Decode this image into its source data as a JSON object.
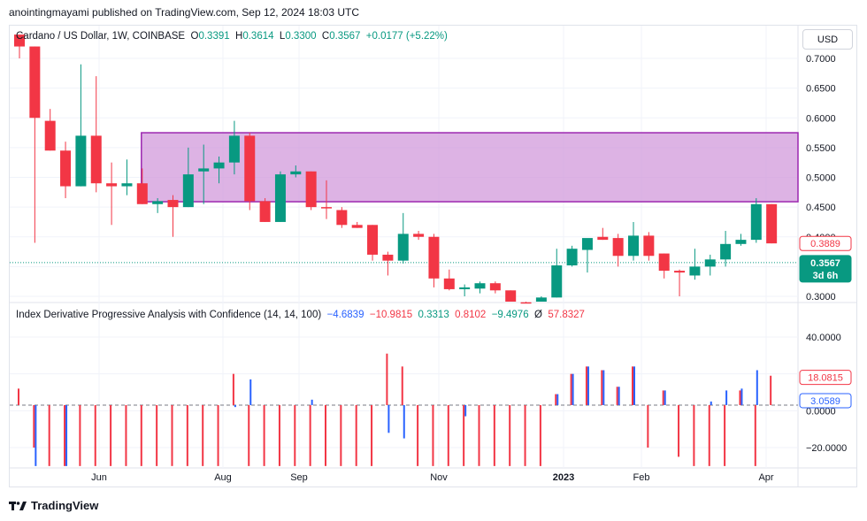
{
  "header": {
    "published_text": "anointingmayami published on TradingView.com, Sep 12, 2024 18:03 UTC"
  },
  "currency_button": "USD",
  "legend": {
    "symbol": "Cardano / US Dollar, 1W, COINBASE",
    "open_label": "O",
    "open": "0.3391",
    "high_label": "H",
    "high": "0.3614",
    "low_label": "L",
    "low": "0.3300",
    "close_label": "C",
    "close": "0.3567",
    "change": "+0.0177 (+5.22%)"
  },
  "indicator_legend": {
    "name": "Index Derivative Progressive Analysis with Confidence (14, 14, 100)",
    "v1": "−4.6839",
    "v2": "−10.9815",
    "v3": "0.3313",
    "v4": "0.8102",
    "v5": "−9.4976",
    "sym": "Ø",
    "v6": "57.8327"
  },
  "price_tags": {
    "upper": "0.3889",
    "current": "0.3567",
    "countdown": "3d 6h"
  },
  "indicator_tags": {
    "upper": "18.0815",
    "lower": "3.0589"
  },
  "footer": {
    "brand": "TradingView"
  },
  "colors": {
    "up": "#089981",
    "down": "#f23645",
    "box_fill": "#ce93d8",
    "box_border": "#9c27b0",
    "blue": "#2962ff"
  },
  "chart_data": [
    {
      "type": "candlestick",
      "title": "Cardano / US Dollar, 1W, COINBASE",
      "y_ticks": [
        "0.7000",
        "0.6500",
        "0.6000",
        "0.5500",
        "0.5000",
        "0.4500",
        "0.4000",
        "0.3500",
        "0.3000"
      ],
      "x_ticks": [
        "Jun",
        "Aug",
        "Sep",
        "Nov",
        "2023",
        "Feb",
        "Apr"
      ],
      "ylim": [
        0.29,
        0.74
      ],
      "candles": [
        {
          "o": 0.74,
          "h": 0.74,
          "l": 0.7,
          "c": 0.72
        },
        {
          "o": 0.72,
          "h": 0.72,
          "l": 0.39,
          "c": 0.6
        },
        {
          "o": 0.595,
          "h": 0.615,
          "l": 0.545,
          "c": 0.545
        },
        {
          "o": 0.545,
          "h": 0.56,
          "l": 0.465,
          "c": 0.485
        },
        {
          "o": 0.485,
          "h": 0.69,
          "l": 0.485,
          "c": 0.57
        },
        {
          "o": 0.57,
          "h": 0.67,
          "l": 0.475,
          "c": 0.49
        },
        {
          "o": 0.49,
          "h": 0.525,
          "l": 0.42,
          "c": 0.485
        },
        {
          "o": 0.485,
          "h": 0.53,
          "l": 0.47,
          "c": 0.49
        },
        {
          "o": 0.49,
          "h": 0.515,
          "l": 0.455,
          "c": 0.455
        },
        {
          "o": 0.455,
          "h": 0.465,
          "l": 0.44,
          "c": 0.46
        },
        {
          "o": 0.462,
          "h": 0.47,
          "l": 0.4,
          "c": 0.45
        },
        {
          "o": 0.45,
          "h": 0.55,
          "l": 0.45,
          "c": 0.505
        },
        {
          "o": 0.51,
          "h": 0.555,
          "l": 0.455,
          "c": 0.515
        },
        {
          "o": 0.515,
          "h": 0.535,
          "l": 0.49,
          "c": 0.525
        },
        {
          "o": 0.525,
          "h": 0.595,
          "l": 0.505,
          "c": 0.57
        },
        {
          "o": 0.57,
          "h": 0.575,
          "l": 0.445,
          "c": 0.46
        },
        {
          "o": 0.46,
          "h": 0.465,
          "l": 0.425,
          "c": 0.425
        },
        {
          "o": 0.425,
          "h": 0.51,
          "l": 0.425,
          "c": 0.505
        },
        {
          "o": 0.505,
          "h": 0.52,
          "l": 0.5,
          "c": 0.51
        },
        {
          "o": 0.51,
          "h": 0.51,
          "l": 0.445,
          "c": 0.45
        },
        {
          "o": 0.45,
          "h": 0.495,
          "l": 0.43,
          "c": 0.448
        },
        {
          "o": 0.445,
          "h": 0.45,
          "l": 0.415,
          "c": 0.42
        },
        {
          "o": 0.42,
          "h": 0.425,
          "l": 0.415,
          "c": 0.415
        },
        {
          "o": 0.42,
          "h": 0.42,
          "l": 0.36,
          "c": 0.37
        },
        {
          "o": 0.37,
          "h": 0.375,
          "l": 0.335,
          "c": 0.36
        },
        {
          "o": 0.36,
          "h": 0.44,
          "l": 0.355,
          "c": 0.405
        },
        {
          "o": 0.405,
          "h": 0.41,
          "l": 0.395,
          "c": 0.4
        },
        {
          "o": 0.4,
          "h": 0.405,
          "l": 0.315,
          "c": 0.33
        },
        {
          "o": 0.33,
          "h": 0.345,
          "l": 0.31,
          "c": 0.312
        },
        {
          "o": 0.312,
          "h": 0.32,
          "l": 0.3,
          "c": 0.315
        },
        {
          "o": 0.313,
          "h": 0.325,
          "l": 0.305,
          "c": 0.322
        },
        {
          "o": 0.322,
          "h": 0.325,
          "l": 0.305,
          "c": 0.31
        },
        {
          "o": 0.31,
          "h": 0.31,
          "l": 0.29,
          "c": 0.29
        },
        {
          "o": 0.29,
          "h": 0.29,
          "l": 0.285,
          "c": 0.288
        },
        {
          "o": 0.29,
          "h": 0.3,
          "l": 0.28,
          "c": 0.298
        },
        {
          "o": 0.298,
          "h": 0.38,
          "l": 0.298,
          "c": 0.352
        },
        {
          "o": 0.352,
          "h": 0.385,
          "l": 0.35,
          "c": 0.38
        },
        {
          "o": 0.378,
          "h": 0.395,
          "l": 0.34,
          "c": 0.398
        },
        {
          "o": 0.4,
          "h": 0.415,
          "l": 0.395,
          "c": 0.395
        },
        {
          "o": 0.398,
          "h": 0.405,
          "l": 0.35,
          "c": 0.368
        },
        {
          "o": 0.368,
          "h": 0.425,
          "l": 0.36,
          "c": 0.402
        },
        {
          "o": 0.402,
          "h": 0.408,
          "l": 0.36,
          "c": 0.368
        },
        {
          "o": 0.372,
          "h": 0.372,
          "l": 0.33,
          "c": 0.343
        },
        {
          "o": 0.343,
          "h": 0.345,
          "l": 0.3,
          "c": 0.34
        },
        {
          "o": 0.335,
          "h": 0.38,
          "l": 0.328,
          "c": 0.35
        },
        {
          "o": 0.35,
          "h": 0.37,
          "l": 0.335,
          "c": 0.362
        },
        {
          "o": 0.362,
          "h": 0.41,
          "l": 0.35,
          "c": 0.388
        },
        {
          "o": 0.388,
          "h": 0.405,
          "l": 0.385,
          "c": 0.395
        },
        {
          "o": 0.395,
          "h": 0.465,
          "l": 0.39,
          "c": 0.455
        },
        {
          "o": 0.455,
          "h": 0.455,
          "l": 0.389,
          "c": 0.389
        }
      ],
      "zone": {
        "from_index": 8,
        "to_index": 49,
        "top": 0.575,
        "bottom": 0.459
      },
      "last_price": 0.3567,
      "tag_price": 0.3889
    },
    {
      "type": "bar",
      "title": "Index Derivative Progressive Analysis with Confidence (14, 14, 100)",
      "y_ticks": [
        "40.0000",
        "20.0000",
        "0.0000",
        "−20.0000"
      ],
      "ylim": [
        -31,
        50
      ],
      "values": [
        12,
        -20,
        -30,
        -30,
        -30,
        -30,
        -30,
        -30,
        -30,
        -30,
        -30,
        -30,
        -30,
        -30,
        20,
        -30,
        -30,
        -30,
        -30,
        -30,
        -30,
        -30,
        -30,
        -30,
        31,
        24,
        -30,
        -30,
        -30,
        -30,
        -30,
        -30,
        -30,
        -30,
        -30,
        9,
        20,
        24,
        22,
        13,
        24,
        -20,
        11,
        -25,
        -30,
        -30,
        -30,
        11,
        -30,
        19
      ],
      "blue_bars": {
        "1": -30,
        "3": -30,
        "14": 2,
        "15": 17,
        "18": 3,
        "19": 6,
        "24": -12,
        "25": -15,
        "29": -3,
        "35": 9,
        "36": 20,
        "37": 24,
        "38": 22,
        "39": 13,
        "40": 24,
        "42": 11,
        "44": 3,
        "45": 5,
        "46": 11,
        "47": 12,
        "48": 22
      },
      "zero_value": 3.0589,
      "upper_value": 18.0815
    }
  ]
}
